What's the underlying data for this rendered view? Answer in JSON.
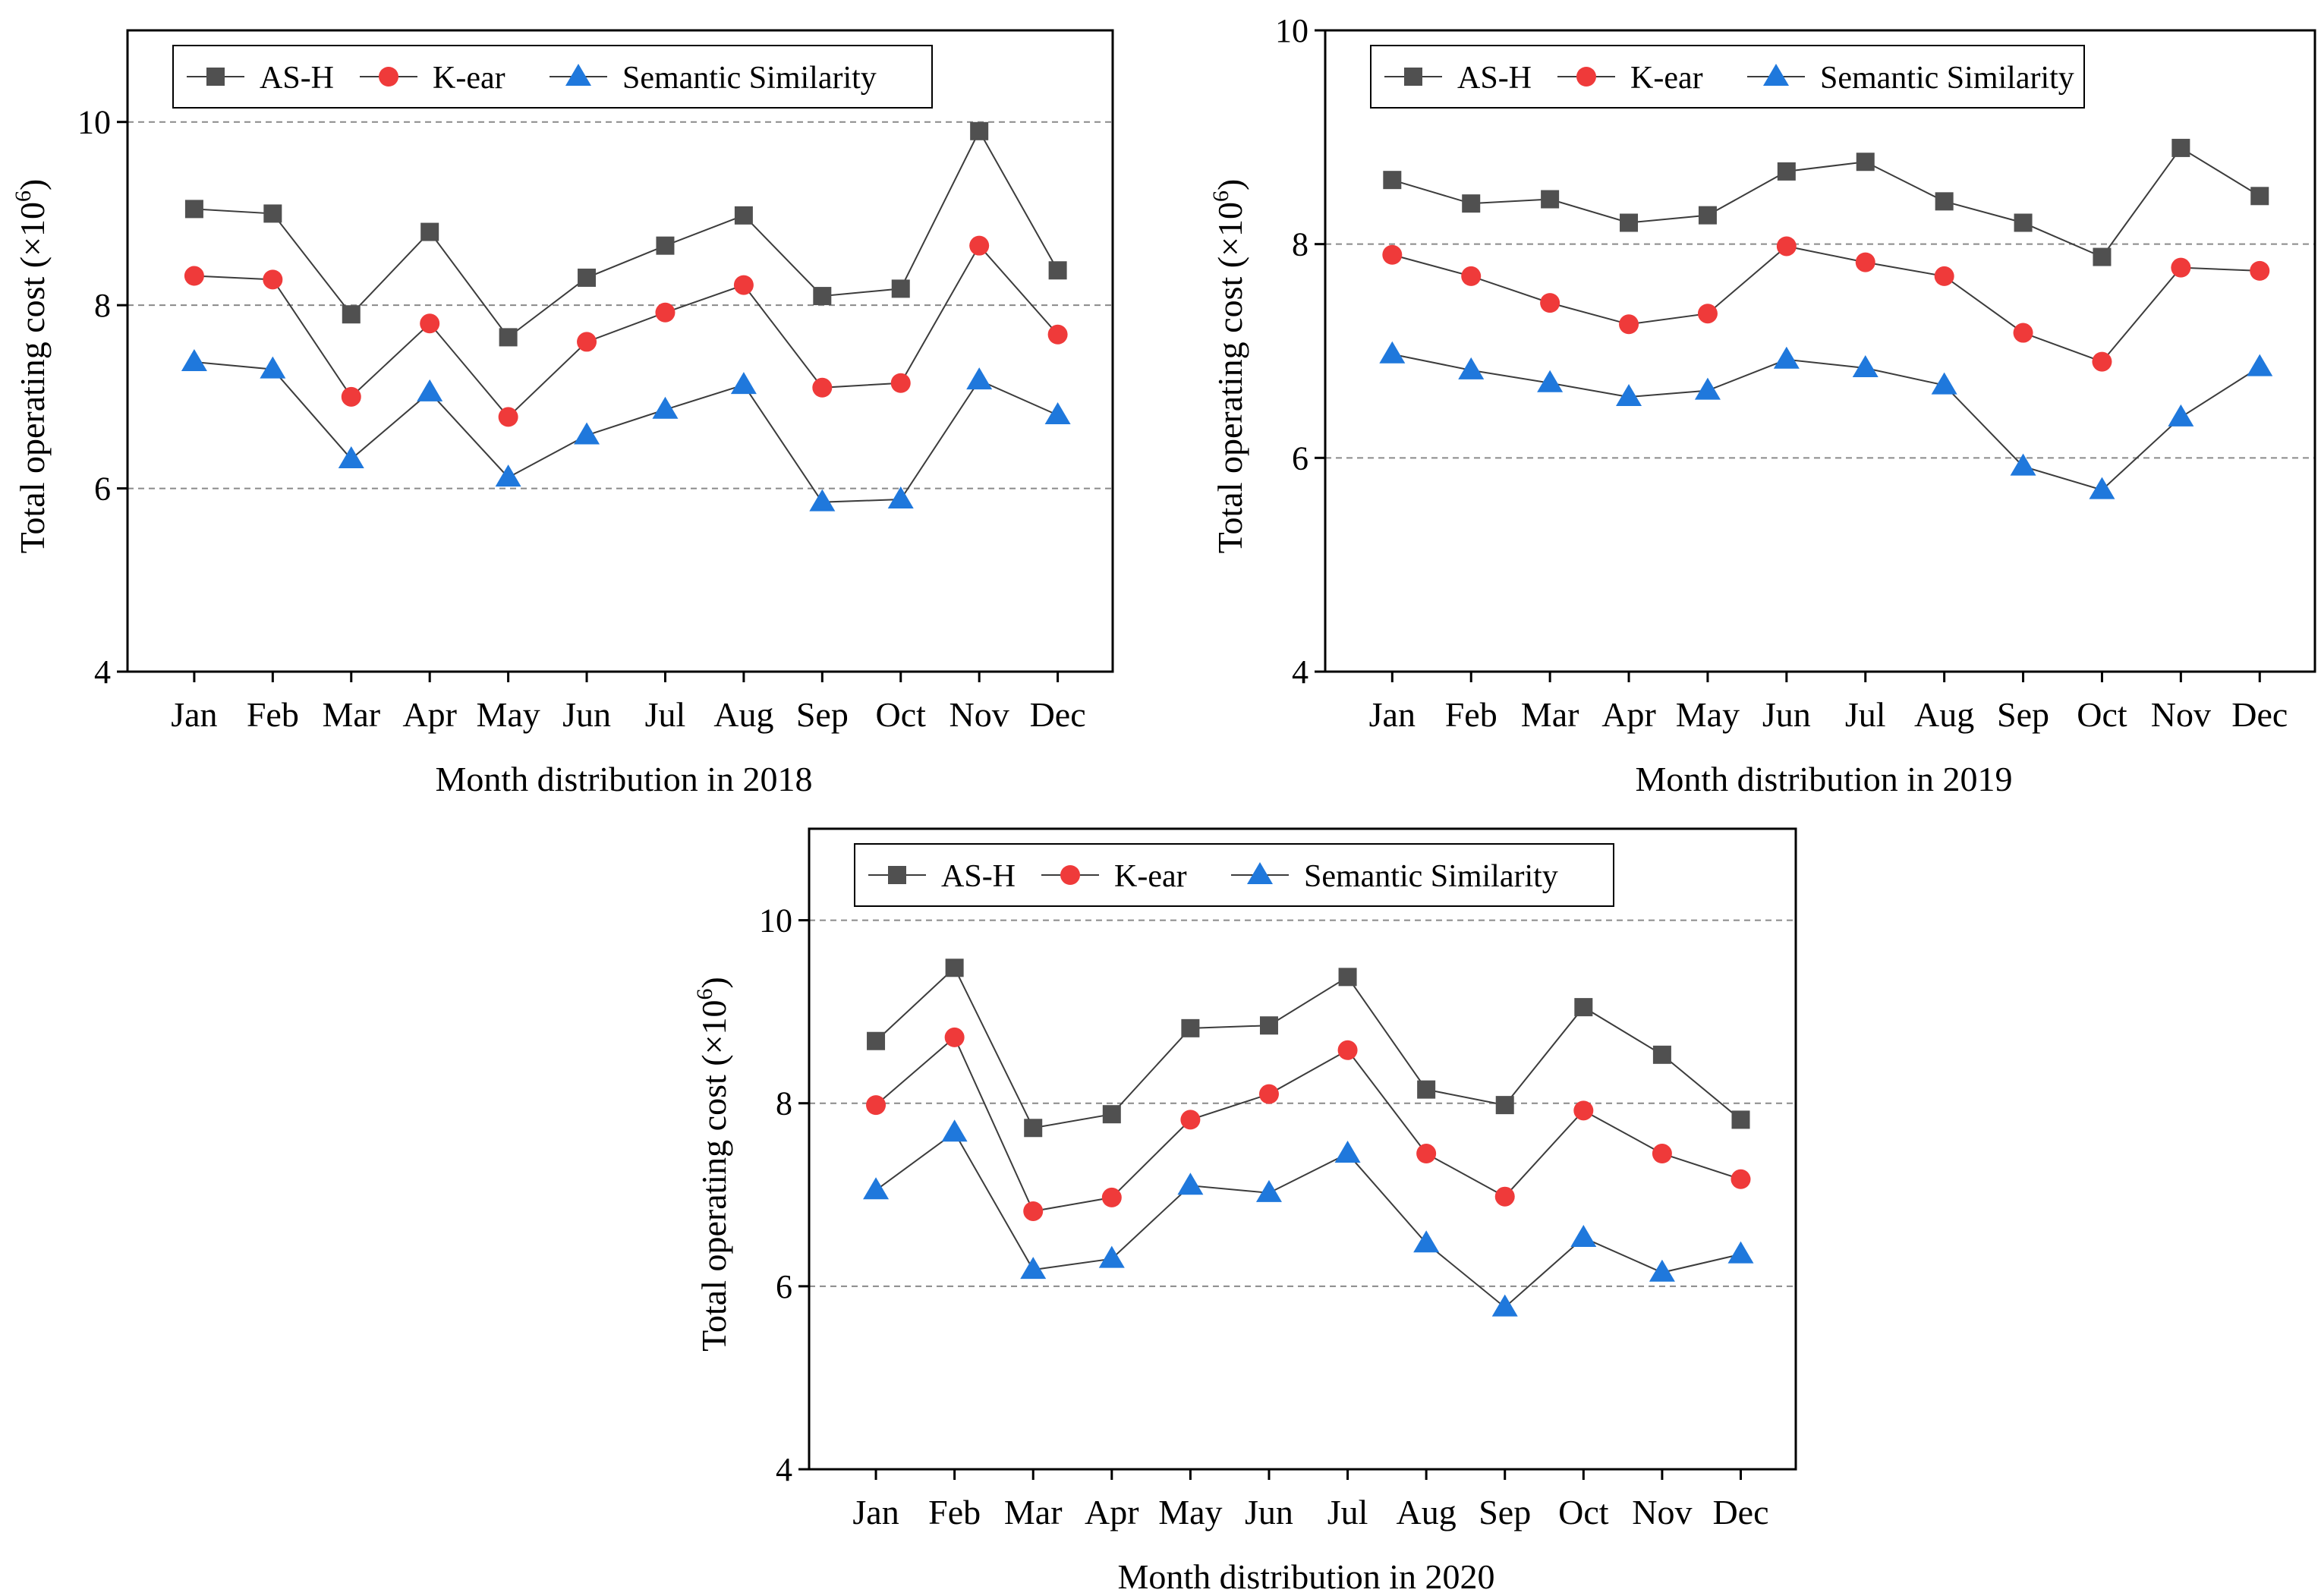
{
  "colors": {
    "as_h": "#505050",
    "k_ear": "#ef3a3a",
    "semantic": "#1f78dc",
    "line": "#3c3c3c",
    "grid": "#8a8a8a"
  },
  "chart_data": [
    {
      "type": "line",
      "xlabel": "Month distribution in 2018",
      "ylabel": "Total operating cost (×10",
      "ylabel_exp": "6",
      "ylabel_close": ")",
      "ylim": [
        4,
        11
      ],
      "yticks": [
        4,
        6,
        8,
        10
      ],
      "grid_y": [
        6,
        8,
        10
      ],
      "legend": "top-left",
      "categories": [
        "Jan",
        "Feb",
        "Mar",
        "Apr",
        "May",
        "Jun",
        "Jul",
        "Aug",
        "Sep",
        "Oct",
        "Nov",
        "Dec"
      ],
      "series": [
        {
          "name": "AS-H",
          "marker": "square",
          "values": [
            9.05,
            9.0,
            7.9,
            8.8,
            7.65,
            8.3,
            8.65,
            8.98,
            8.1,
            8.18,
            9.9,
            8.38
          ]
        },
        {
          "name": "K-ear",
          "marker": "circle",
          "values": [
            8.32,
            8.28,
            7.0,
            7.8,
            6.78,
            7.6,
            7.92,
            8.22,
            7.1,
            7.15,
            8.65,
            7.68
          ]
        },
        {
          "name": "Semantic Similarity",
          "marker": "triangle",
          "values": [
            7.38,
            7.3,
            6.32,
            7.05,
            6.12,
            6.58,
            6.86,
            7.13,
            5.85,
            5.88,
            7.18,
            6.8
          ]
        }
      ]
    },
    {
      "type": "line",
      "xlabel": "Month distribution in 2019",
      "ylabel": "Total operating cost (×10",
      "ylabel_exp": "6",
      "ylabel_close": ")",
      "ylim": [
        4,
        10
      ],
      "yticks": [
        4,
        6,
        8,
        10
      ],
      "grid_y": [
        6,
        8
      ],
      "legend": "top-left",
      "categories": [
        "Jan",
        "Feb",
        "Mar",
        "Apr",
        "May",
        "Jun",
        "Jul",
        "Aug",
        "Sep",
        "Oct",
        "Nov",
        "Dec"
      ],
      "series": [
        {
          "name": "AS-H",
          "marker": "square",
          "values": [
            8.6,
            8.38,
            8.42,
            8.2,
            8.27,
            8.68,
            8.77,
            8.4,
            8.2,
            7.88,
            8.9,
            8.45
          ]
        },
        {
          "name": "K-ear",
          "marker": "circle",
          "values": [
            7.9,
            7.7,
            7.45,
            7.25,
            7.35,
            7.98,
            7.83,
            7.7,
            7.17,
            6.9,
            7.78,
            7.75
          ]
        },
        {
          "name": "Semantic Similarity",
          "marker": "triangle",
          "values": [
            6.97,
            6.82,
            6.7,
            6.57,
            6.63,
            6.92,
            6.84,
            6.68,
            5.92,
            5.7,
            6.38,
            6.85
          ]
        }
      ]
    },
    {
      "type": "line",
      "xlabel": "Month distribution in 2020",
      "ylabel": "Total operating cost (×10",
      "ylabel_exp": "6",
      "ylabel_close": ")",
      "ylim": [
        4,
        11
      ],
      "yticks": [
        4,
        6,
        8,
        10
      ],
      "grid_y": [
        6,
        8,
        10
      ],
      "legend": "top-left",
      "categories": [
        "Jan",
        "Feb",
        "Mar",
        "Apr",
        "May",
        "Jun",
        "Jul",
        "Aug",
        "Sep",
        "Oct",
        "Nov",
        "Dec"
      ],
      "series": [
        {
          "name": "AS-H",
          "marker": "square",
          "values": [
            8.68,
            9.48,
            7.73,
            7.88,
            8.82,
            8.85,
            9.38,
            8.15,
            7.98,
            9.05,
            8.53,
            7.82
          ]
        },
        {
          "name": "K-ear",
          "marker": "circle",
          "values": [
            7.98,
            8.72,
            6.82,
            6.97,
            7.82,
            8.1,
            8.58,
            7.45,
            6.98,
            7.92,
            7.45,
            7.17
          ]
        },
        {
          "name": "Semantic Similarity",
          "marker": "triangle",
          "values": [
            7.05,
            7.68,
            6.18,
            6.3,
            7.1,
            7.02,
            7.45,
            6.47,
            5.77,
            6.53,
            6.15,
            6.35
          ]
        }
      ]
    }
  ]
}
